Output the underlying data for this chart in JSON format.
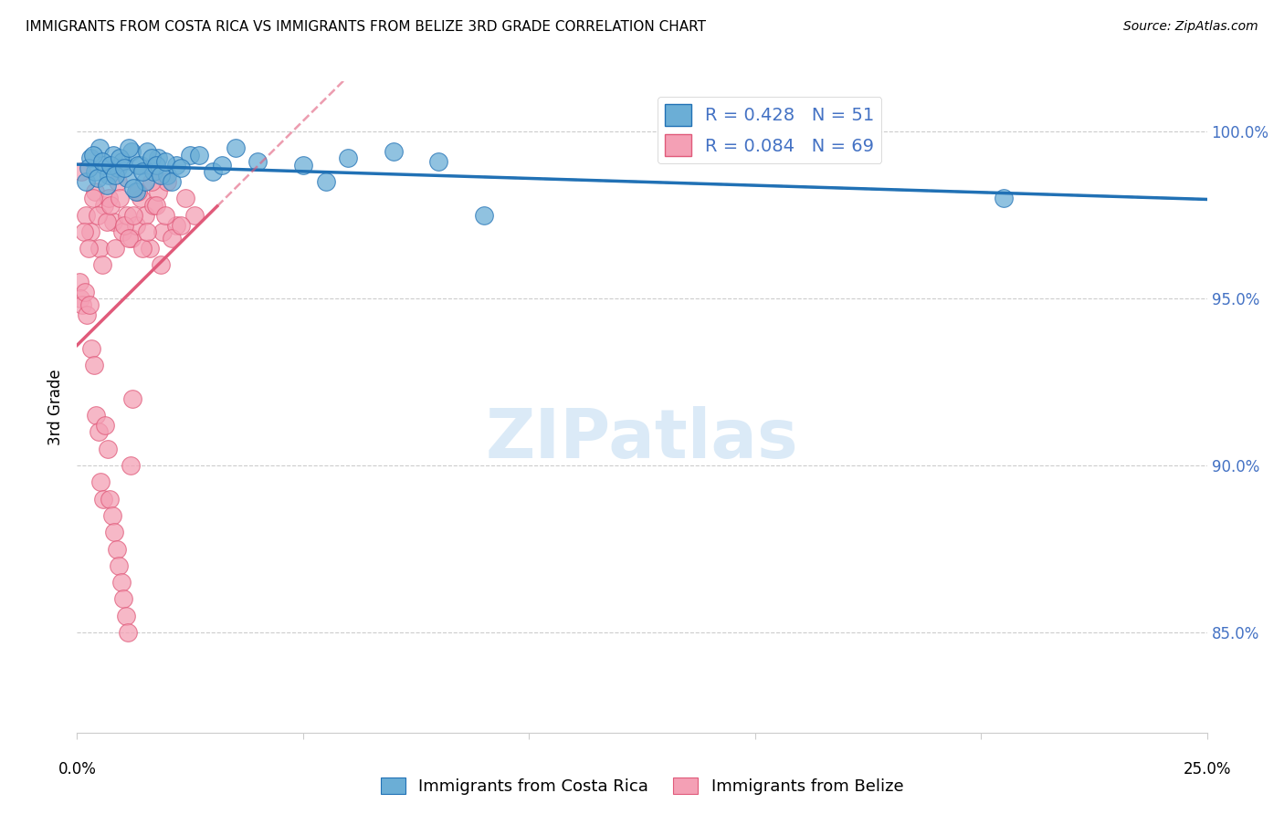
{
  "title": "IMMIGRANTS FROM COSTA RICA VS IMMIGRANTS FROM BELIZE 3RD GRADE CORRELATION CHART",
  "source": "Source: ZipAtlas.com",
  "ylabel": "3rd Grade",
  "yticks": [
    85.0,
    90.0,
    95.0,
    100.0
  ],
  "ytick_labels": [
    "85.0%",
    "90.0%",
    "95.0%",
    "100.0%"
  ],
  "xlim": [
    0.0,
    25.0
  ],
  "ylim": [
    82.0,
    101.5
  ],
  "legend_label_blue": "Immigrants from Costa Rica",
  "legend_label_pink": "Immigrants from Belize",
  "R_blue": 0.428,
  "N_blue": 51,
  "R_pink": 0.084,
  "N_pink": 69,
  "blue_color": "#6baed6",
  "pink_color": "#f4a0b5",
  "blue_line_color": "#2171b5",
  "pink_line_color": "#e05a7a",
  "costa_rica_x": [
    0.2,
    0.3,
    0.4,
    0.5,
    0.6,
    0.7,
    0.8,
    0.9,
    1.0,
    1.1,
    1.2,
    1.3,
    1.4,
    1.5,
    1.7,
    1.8,
    2.0,
    2.2,
    2.5,
    3.0,
    3.5,
    4.0,
    5.0,
    5.5,
    6.0,
    7.0,
    8.0,
    9.0,
    0.25,
    0.35,
    0.45,
    0.55,
    0.65,
    0.75,
    0.85,
    0.95,
    1.05,
    1.15,
    1.25,
    1.35,
    1.45,
    1.55,
    1.65,
    1.75,
    1.85,
    1.95,
    2.1,
    2.3,
    2.7,
    3.2,
    20.5
  ],
  "costa_rica_y": [
    98.5,
    99.2,
    98.8,
    99.5,
    99.0,
    98.7,
    99.3,
    98.9,
    99.1,
    98.6,
    99.4,
    98.2,
    99.0,
    98.5,
    98.8,
    99.2,
    98.7,
    99.0,
    99.3,
    98.8,
    99.5,
    99.1,
    99.0,
    98.5,
    99.2,
    99.4,
    99.1,
    97.5,
    98.9,
    99.3,
    98.6,
    99.1,
    98.4,
    99.0,
    98.7,
    99.2,
    98.9,
    99.5,
    98.3,
    99.0,
    98.8,
    99.4,
    99.2,
    99.0,
    98.7,
    99.1,
    98.5,
    98.9,
    99.3,
    99.0,
    98.0
  ],
  "belize_x": [
    0.1,
    0.2,
    0.3,
    0.4,
    0.5,
    0.6,
    0.7,
    0.8,
    0.9,
    1.0,
    1.1,
    1.2,
    1.3,
    1.4,
    1.5,
    1.6,
    1.7,
    1.8,
    1.9,
    2.0,
    2.2,
    2.4,
    2.6,
    0.15,
    0.25,
    0.35,
    0.45,
    0.55,
    0.65,
    0.75,
    0.85,
    0.95,
    1.05,
    1.15,
    1.25,
    1.35,
    1.45,
    1.55,
    1.65,
    1.75,
    1.85,
    1.95,
    2.1,
    2.3,
    0.05,
    0.08,
    0.12,
    0.18,
    0.22,
    0.28,
    0.32,
    0.38,
    0.42,
    0.48,
    0.52,
    0.58,
    0.62,
    0.68,
    0.72,
    0.78,
    0.82,
    0.88,
    0.92,
    0.98,
    1.02,
    1.08,
    1.12,
    1.18,
    1.22
  ],
  "belize_y": [
    98.8,
    97.5,
    97.0,
    98.2,
    96.5,
    97.8,
    98.0,
    97.3,
    98.5,
    97.0,
    97.5,
    96.8,
    97.2,
    98.0,
    97.5,
    96.5,
    97.8,
    98.2,
    97.0,
    98.5,
    97.2,
    98.0,
    97.5,
    97.0,
    96.5,
    98.0,
    97.5,
    96.0,
    97.3,
    97.8,
    96.5,
    98.0,
    97.2,
    96.8,
    97.5,
    98.2,
    96.5,
    97.0,
    98.5,
    97.8,
    96.0,
    97.5,
    96.8,
    97.2,
    95.5,
    95.0,
    94.8,
    95.2,
    94.5,
    94.8,
    93.5,
    93.0,
    91.5,
    91.0,
    89.5,
    89.0,
    91.2,
    90.5,
    89.0,
    88.5,
    88.0,
    87.5,
    87.0,
    86.5,
    86.0,
    85.5,
    85.0,
    90.0,
    92.0
  ]
}
